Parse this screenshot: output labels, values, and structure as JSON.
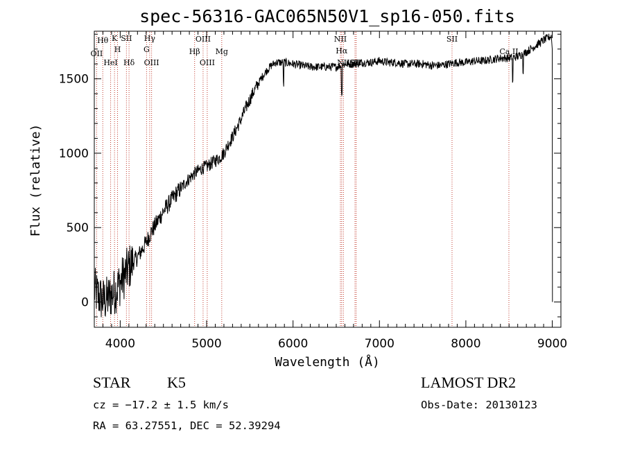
{
  "chart_data": {
    "type": "line",
    "title": "spec-56316-GAC065N50V1_sp16-050.fits",
    "xlabel": "Wavelength (Å)",
    "ylabel": "Flux (relative)",
    "xlim": [
      3700,
      9100
    ],
    "ylim": [
      -170,
      1820
    ],
    "xticks": [
      4000,
      5000,
      6000,
      7000,
      8000,
      9000
    ],
    "yticks": [
      0,
      500,
      1000,
      1500
    ],
    "series": [
      {
        "x": [
          3700,
          3750,
          3800,
          3850,
          3900,
          3950,
          4000,
          4050,
          4100,
          4150,
          4200,
          4250,
          4300,
          4350,
          4400,
          4450,
          4500,
          4550,
          4600,
          4650,
          4700,
          4750,
          4800,
          4850,
          4900,
          4950,
          5000,
          5050,
          5100,
          5150,
          5200,
          5250,
          5300,
          5350,
          5400,
          5450,
          5500,
          5550,
          5600,
          5650,
          5700,
          5750,
          5800,
          5900,
          6000,
          6100,
          6200,
          6300,
          6400,
          6500,
          6600,
          6700,
          6800,
          6900,
          7000,
          7100,
          7200,
          7300,
          7400,
          7500,
          7600,
          7700,
          7800,
          7900,
          8000,
          8100,
          8200,
          8300,
          8400,
          8500,
          8600,
          8700,
          8800,
          8900,
          9000
        ],
        "y": [
          80,
          40,
          10,
          20,
          50,
          80,
          130,
          180,
          230,
          270,
          300,
          350,
          400,
          460,
          510,
          560,
          610,
          650,
          690,
          730,
          760,
          800,
          830,
          860,
          880,
          900,
          910,
          930,
          950,
          970,
          1000,
          1060,
          1110,
          1170,
          1230,
          1300,
          1360,
          1420,
          1470,
          1520,
          1560,
          1590,
          1610,
          1610,
          1600,
          1590,
          1580,
          1580,
          1580,
          1580,
          1600,
          1600,
          1610,
          1610,
          1620,
          1610,
          1610,
          1600,
          1600,
          1600,
          1590,
          1590,
          1600,
          1610,
          1610,
          1620,
          1620,
          1630,
          1640,
          1640,
          1650,
          1680,
          1720,
          1760,
          1790
        ]
      }
    ],
    "lines": [
      {
        "label": "OII",
        "wave": 3727
      },
      {
        "label": "Hθ",
        "wave": 3798
      },
      {
        "label": "HeI",
        "wave": 3889
      },
      {
        "label": "K",
        "wave": 3934
      },
      {
        "label": "H",
        "wave": 3969
      },
      {
        "label": "SII",
        "wave": 4072
      },
      {
        "label": "Hδ",
        "wave": 4102
      },
      {
        "label": "Hγ",
        "wave": 4341
      },
      {
        "label": "G",
        "wave": 4305
      },
      {
        "label": "OIII",
        "wave": 4363
      },
      {
        "label": "Hβ",
        "wave": 4861
      },
      {
        "label": "OIII",
        "wave": 4959
      },
      {
        "label": "OIII",
        "wave": 5007
      },
      {
        "label": "Mg",
        "wave": 5175
      },
      {
        "label": "NII",
        "wave": 6548
      },
      {
        "label": "Hα",
        "wave": 6563
      },
      {
        "label": "NII",
        "wave": 6583
      },
      {
        "label": "SII",
        "wave": 6717
      },
      {
        "label": "SII",
        "wave": 6731
      },
      {
        "label": "SII",
        "wave": 7840
      },
      {
        "label": "Ca II",
        "wave": 8498
      }
    ],
    "grid": false,
    "legend": "none"
  },
  "info": {
    "class": "STAR",
    "subclass": "K5",
    "survey": "LAMOST DR2",
    "cz": "cz = −17.2 ± 1.5 km/s",
    "obs_date": "Obs-Date: 20130123",
    "coords": "RA =  63.27551, DEC =  52.39294"
  }
}
